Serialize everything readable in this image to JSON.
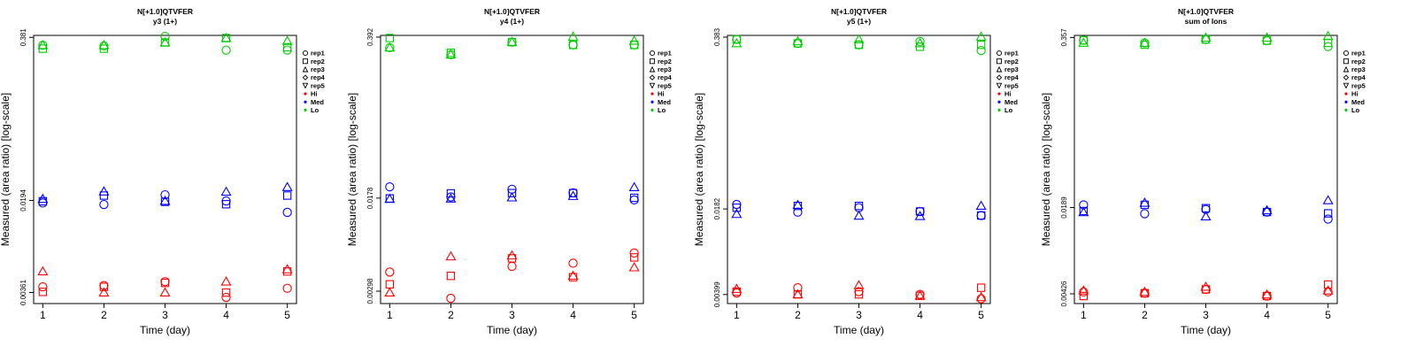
{
  "chart_data": [
    {
      "type": "scatter",
      "title": "N[+1.0]QTVFER",
      "subtitle": "y3 (1+)",
      "xlabel": "Time (day)",
      "ylabel": "Measured (area ratio) [log-scale]",
      "log_y": true,
      "x_ticks": [
        1,
        2,
        3,
        4,
        5
      ],
      "y_ticks": [
        {
          "value": 0.00361,
          "label": "0.00361"
        },
        {
          "value": 0.0194,
          "label": "0.0194"
        },
        {
          "value": 0.381,
          "label": "0.381"
        }
      ],
      "ylim": [
        0.00295,
        0.395
      ],
      "series": [
        {
          "group": "Hi",
          "rep": "rep1",
          "x": [
            1,
            2,
            3,
            4,
            5
          ],
          "y": [
            0.004,
            0.0041,
            0.0044,
            0.0033,
            0.0039
          ]
        },
        {
          "group": "Hi",
          "rep": "rep2",
          "x": [
            1,
            2,
            3,
            4,
            5
          ],
          "y": [
            0.00365,
            0.004,
            0.0043,
            0.0036,
            0.0053
          ]
        },
        {
          "group": "Hi",
          "rep": "rep3",
          "x": [
            1,
            2,
            3,
            4,
            5
          ],
          "y": [
            0.0053,
            0.0036,
            0.0036,
            0.0044,
            0.0055
          ]
        },
        {
          "group": "Med",
          "rep": "rep1",
          "x": [
            1,
            2,
            3,
            4,
            5
          ],
          "y": [
            0.0185,
            0.018,
            0.0215,
            0.0192,
            0.0156
          ]
        },
        {
          "group": "Med",
          "rep": "rep2",
          "x": [
            1,
            2,
            3,
            4,
            5
          ],
          "y": [
            0.0191,
            0.0212,
            0.0189,
            0.0181,
            0.0212
          ]
        },
        {
          "group": "Med",
          "rep": "rep3",
          "x": [
            1,
            2,
            3,
            4,
            5
          ],
          "y": [
            0.0199,
            0.0228,
            0.0192,
            0.0227,
            0.0247
          ]
        },
        {
          "group": "Lo",
          "rep": "rep1",
          "x": [
            1,
            2,
            3,
            4,
            5
          ],
          "y": [
            0.33,
            0.326,
            0.388,
            0.302,
            0.302
          ]
        },
        {
          "group": "Lo",
          "rep": "rep2",
          "x": [
            1,
            2,
            3,
            4,
            5
          ],
          "y": [
            0.31,
            0.31,
            0.347,
            0.376,
            0.318
          ]
        },
        {
          "group": "Lo",
          "rep": "rep3",
          "x": [
            1,
            2,
            3,
            4,
            5
          ],
          "y": [
            0.33,
            0.33,
            0.347,
            0.376,
            0.356
          ]
        }
      ],
      "legend": {
        "placement": "right",
        "entries": [
          {
            "label": "rep1",
            "marker": "circle"
          },
          {
            "label": "rep2",
            "marker": "square"
          },
          {
            "label": "rep3",
            "marker": "triangle"
          },
          {
            "label": "rep4",
            "marker": "diamond"
          },
          {
            "label": "rep5",
            "marker": "triangle-down"
          },
          {
            "label": "Hi",
            "marker": "dot",
            "color": "#ff0000"
          },
          {
            "label": "Med",
            "marker": "dot",
            "color": "#0000ff"
          },
          {
            "label": "Lo",
            "marker": "dot",
            "color": "#00cc00"
          }
        ]
      }
    },
    {
      "type": "scatter",
      "title": "N[+1.0]QTVFER",
      "subtitle": "y4 (1+)",
      "xlabel": "Time (day)",
      "ylabel": "Measured (area ratio) [log-scale]",
      "log_y": true,
      "x_ticks": [
        1,
        2,
        3,
        4,
        5
      ],
      "y_ticks": [
        {
          "value": 0.00298,
          "label": "0.00298"
        },
        {
          "value": 0.0178,
          "label": "0.0178"
        },
        {
          "value": 0.392,
          "label": "0.392"
        }
      ],
      "ylim": [
        0.00235,
        0.405
      ],
      "series": [
        {
          "group": "Hi",
          "rep": "rep1",
          "x": [
            1,
            2,
            3,
            4,
            5
          ],
          "y": [
            0.0043,
            0.0026,
            0.0048,
            0.0051,
            0.0062
          ]
        },
        {
          "group": "Hi",
          "rep": "rep2",
          "x": [
            1,
            2,
            3,
            4,
            5
          ],
          "y": [
            0.0034,
            0.004,
            0.0056,
            0.0039,
            0.0057
          ]
        },
        {
          "group": "Hi",
          "rep": "rep3",
          "x": [
            1,
            2,
            3,
            4,
            5
          ],
          "y": [
            0.0029,
            0.0058,
            0.0059,
            0.004,
            0.0047
          ]
        },
        {
          "group": "Med",
          "rep": "rep1",
          "x": [
            1,
            2,
            3,
            4,
            5
          ],
          "y": [
            0.0221,
            0.0182,
            0.0211,
            0.0197,
            0.0172
          ]
        },
        {
          "group": "Med",
          "rep": "rep2",
          "x": [
            1,
            2,
            3,
            4,
            5
          ],
          "y": [
            0.0177,
            0.0195,
            0.0196,
            0.0196,
            0.0179
          ]
        },
        {
          "group": "Med",
          "rep": "rep3",
          "x": [
            1,
            2,
            3,
            4,
            5
          ],
          "y": [
            0.0175,
            0.0176,
            0.018,
            0.0185,
            0.0219
          ]
        },
        {
          "group": "Lo",
          "rep": "rep1",
          "x": [
            1,
            2,
            3,
            4,
            5
          ],
          "y": [
            0.32,
            0.28,
            0.356,
            0.337,
            0.337
          ]
        },
        {
          "group": "Lo",
          "rep": "rep2",
          "x": [
            1,
            2,
            3,
            4,
            5
          ],
          "y": [
            0.385,
            0.29,
            0.356,
            0.337,
            0.337
          ]
        },
        {
          "group": "Lo",
          "rep": "rep3",
          "x": [
            1,
            2,
            3,
            4,
            5
          ],
          "y": [
            0.32,
            0.28,
            0.356,
            0.395,
            0.365
          ]
        }
      ],
      "legend": {
        "placement": "right",
        "entries": [
          {
            "label": "rep1",
            "marker": "circle"
          },
          {
            "label": "rep2",
            "marker": "square"
          },
          {
            "label": "rep3",
            "marker": "triangle"
          },
          {
            "label": "rep4",
            "marker": "diamond"
          },
          {
            "label": "rep5",
            "marker": "triangle-down"
          },
          {
            "label": "Hi",
            "marker": "dot",
            "color": "#ff0000"
          },
          {
            "label": "Med",
            "marker": "dot",
            "color": "#0000ff"
          },
          {
            "label": "Lo",
            "marker": "dot",
            "color": "#00cc00"
          }
        ]
      }
    },
    {
      "type": "scatter",
      "title": "N[+1.0]QTVFER",
      "subtitle": "y5 (1+)",
      "xlabel": "Time (day)",
      "ylabel": "Measured (area ratio) [log-scale]",
      "log_y": true,
      "x_ticks": [
        1,
        2,
        3,
        4,
        5
      ],
      "y_ticks": [
        {
          "value": 0.00399,
          "label": "0.00399"
        },
        {
          "value": 0.0182,
          "label": "0.0182"
        },
        {
          "value": 0.383,
          "label": "0.383"
        }
      ],
      "ylim": [
        0.0034,
        0.395
      ],
      "series": [
        {
          "group": "Hi",
          "rep": "rep1",
          "x": [
            1,
            2,
            3,
            4,
            5
          ],
          "y": [
            0.0041,
            0.0045,
            0.0042,
            0.004,
            0.0037
          ]
        },
        {
          "group": "Hi",
          "rep": "rep2",
          "x": [
            1,
            2,
            3,
            4,
            5
          ],
          "y": [
            0.0042,
            0.004,
            0.004,
            0.0039,
            0.0045
          ]
        },
        {
          "group": "Hi",
          "rep": "rep3",
          "x": [
            1,
            2,
            3,
            4,
            5
          ],
          "y": [
            0.0044,
            0.004,
            0.0047,
            0.0039,
            0.0038
          ]
        },
        {
          "group": "Med",
          "rep": "rep1",
          "x": [
            1,
            2,
            3,
            4,
            5
          ],
          "y": [
            0.0197,
            0.0172,
            0.0186,
            0.0174,
            0.0162
          ]
        },
        {
          "group": "Med",
          "rep": "rep2",
          "x": [
            1,
            2,
            3,
            4,
            5
          ],
          "y": [
            0.0186,
            0.0192,
            0.0192,
            0.0174,
            0.0162
          ]
        },
        {
          "group": "Med",
          "rep": "rep3",
          "x": [
            1,
            2,
            3,
            4,
            5
          ],
          "y": [
            0.0166,
            0.0195,
            0.0161,
            0.016,
            0.0192
          ]
        },
        {
          "group": "Lo",
          "rep": "rep1",
          "x": [
            1,
            2,
            3,
            4,
            5
          ],
          "y": [
            0.368,
            0.343,
            0.334,
            0.355,
            0.302
          ]
        },
        {
          "group": "Lo",
          "rep": "rep2",
          "x": [
            1,
            2,
            3,
            4,
            5
          ],
          "y": [
            0.368,
            0.343,
            0.334,
            0.323,
            0.334
          ]
        },
        {
          "group": "Lo",
          "rep": "rep3",
          "x": [
            1,
            2,
            3,
            4,
            5
          ],
          "y": [
            0.343,
            0.355,
            0.368,
            0.343,
            0.386
          ]
        }
      ],
      "legend": {
        "placement": "right",
        "entries": [
          {
            "label": "rep1",
            "marker": "circle"
          },
          {
            "label": "rep2",
            "marker": "square"
          },
          {
            "label": "rep3",
            "marker": "triangle"
          },
          {
            "label": "rep4",
            "marker": "diamond"
          },
          {
            "label": "rep5",
            "marker": "triangle-down"
          },
          {
            "label": "Hi",
            "marker": "dot",
            "color": "#ff0000"
          },
          {
            "label": "Med",
            "marker": "dot",
            "color": "#0000ff"
          },
          {
            "label": "Lo",
            "marker": "dot",
            "color": "#00cc00"
          }
        ]
      }
    },
    {
      "type": "scatter",
      "title": "N[+1.0]QTVFER",
      "subtitle": "sum of Ions",
      "xlabel": "Time (day)",
      "ylabel": "Measured (area ratio) [log-scale]",
      "log_y": true,
      "x_ticks": [
        1,
        2,
        3,
        4,
        5
      ],
      "y_ticks": [
        {
          "value": 0.00426,
          "label": "0.00426"
        },
        {
          "value": 0.0189,
          "label": "0.0189"
        },
        {
          "value": 0.357,
          "label": "0.357"
        }
      ],
      "ylim": [
        0.0036,
        0.37
      ],
      "series": [
        {
          "group": "Hi",
          "rep": "rep1",
          "x": [
            1,
            2,
            3,
            4,
            5
          ],
          "y": [
            0.0044,
            0.0043,
            0.0046,
            0.0041,
            0.0044
          ]
        },
        {
          "group": "Hi",
          "rep": "rep2",
          "x": [
            1,
            2,
            3,
            4,
            5
          ],
          "y": [
            0.0041,
            0.0043,
            0.0046,
            0.0041,
            0.005
          ]
        },
        {
          "group": "Hi",
          "rep": "rep3",
          "x": [
            1,
            2,
            3,
            4,
            5
          ],
          "y": [
            0.0045,
            0.0044,
            0.0048,
            0.0042,
            0.0045
          ]
        },
        {
          "group": "Med",
          "rep": "rep1",
          "x": [
            1,
            2,
            3,
            4,
            5
          ],
          "y": [
            0.0198,
            0.017,
            0.0183,
            0.0175,
            0.0155
          ]
        },
        {
          "group": "Med",
          "rep": "rep2",
          "x": [
            1,
            2,
            3,
            4,
            5
          ],
          "y": [
            0.0178,
            0.0198,
            0.0187,
            0.0175,
            0.0171
          ]
        },
        {
          "group": "Med",
          "rep": "rep3",
          "x": [
            1,
            2,
            3,
            4,
            5
          ],
          "y": [
            0.0174,
            0.0205,
            0.0162,
            0.018,
            0.0214
          ]
        },
        {
          "group": "Lo",
          "rep": "rep1",
          "x": [
            1,
            2,
            3,
            4,
            5
          ],
          "y": [
            0.34,
            0.325,
            0.345,
            0.338,
            0.305
          ]
        },
        {
          "group": "Lo",
          "rep": "rep2",
          "x": [
            1,
            2,
            3,
            4,
            5
          ],
          "y": [
            0.34,
            0.315,
            0.345,
            0.338,
            0.325
          ]
        },
        {
          "group": "Lo",
          "rep": "rep3",
          "x": [
            1,
            2,
            3,
            4,
            5
          ],
          "y": [
            0.325,
            0.325,
            0.355,
            0.355,
            0.365
          ]
        }
      ],
      "legend": {
        "placement": "right",
        "entries": [
          {
            "label": "rep1",
            "marker": "circle"
          },
          {
            "label": "rep2",
            "marker": "square"
          },
          {
            "label": "rep3",
            "marker": "triangle"
          },
          {
            "label": "rep4",
            "marker": "diamond"
          },
          {
            "label": "rep5",
            "marker": "triangle-down"
          },
          {
            "label": "Hi",
            "marker": "dot",
            "color": "#ff0000"
          },
          {
            "label": "Med",
            "marker": "dot",
            "color": "#0000ff"
          },
          {
            "label": "Lo",
            "marker": "dot",
            "color": "#00cc00"
          }
        ]
      }
    }
  ],
  "colors": {
    "Hi": "#ff0000",
    "Med": "#0000ff",
    "Lo": "#00cc00",
    "axis": "#000000"
  }
}
